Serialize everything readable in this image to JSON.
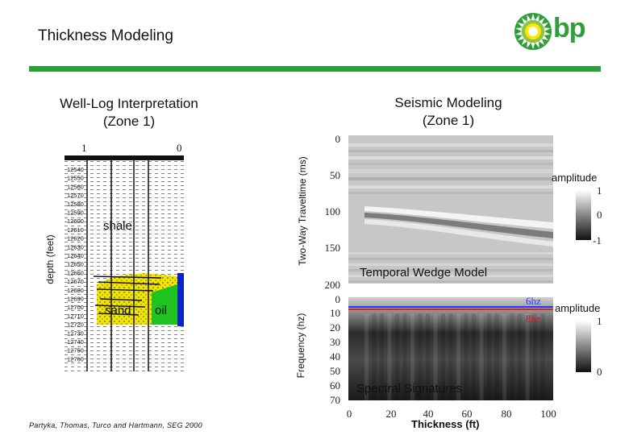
{
  "page": {
    "title": "Thickness Modeling",
    "credit": "Partyka, Thomas, Turco and Hartmann, SEG 2000"
  },
  "brand": {
    "name": "bp",
    "color": "#2e9e3a",
    "sun_color": "#ffdd00"
  },
  "well_log": {
    "heading_line1": "Well-Log Interpretation",
    "heading_line2": "(Zone 1)",
    "axis_label": "depth (feet)",
    "scale_left": "1",
    "scale_right": "0",
    "depths": [
      "12540",
      "12550",
      "12560",
      "12570",
      "12580",
      "12590",
      "12600",
      "12610",
      "12620",
      "12630",
      "12640",
      "12650",
      "12660",
      "12670",
      "12680",
      "12690",
      "12700",
      "12710",
      "12720",
      "12730",
      "12740",
      "12750",
      "12760"
    ],
    "shale_label": "shale",
    "sand_label": "sand",
    "oil_label": "oil",
    "colors": {
      "sand": "#f2e600",
      "oil": "#1fc31f",
      "water": "#0a23c8"
    }
  },
  "seismic": {
    "heading_line1": "Seismic Modeling",
    "heading_line2": "(Zone 1)",
    "time_axis_label": "Two-Way Traveltime (ms)",
    "time_ticks": [
      "0",
      "50",
      "100",
      "150",
      "200"
    ],
    "wedge_label": "Temporal Wedge Model",
    "amp_label": "amplitude",
    "amp_ticks": [
      "1",
      "0",
      "-1"
    ]
  },
  "spectral": {
    "freq_axis_label": "Frequency (hz)",
    "freq_ticks": [
      "0",
      "10",
      "20",
      "30",
      "40",
      "50",
      "60",
      "70"
    ],
    "label": "Spectral Signatures",
    "line_blue": "6hz",
    "line_red": "8hz",
    "amp_label": "amplitude",
    "amp_ticks": [
      "1",
      "0"
    ],
    "thickness_ticks": [
      "0",
      "20",
      "40",
      "60",
      "80",
      "100"
    ],
    "thickness_label": "Thickness (ft)"
  }
}
